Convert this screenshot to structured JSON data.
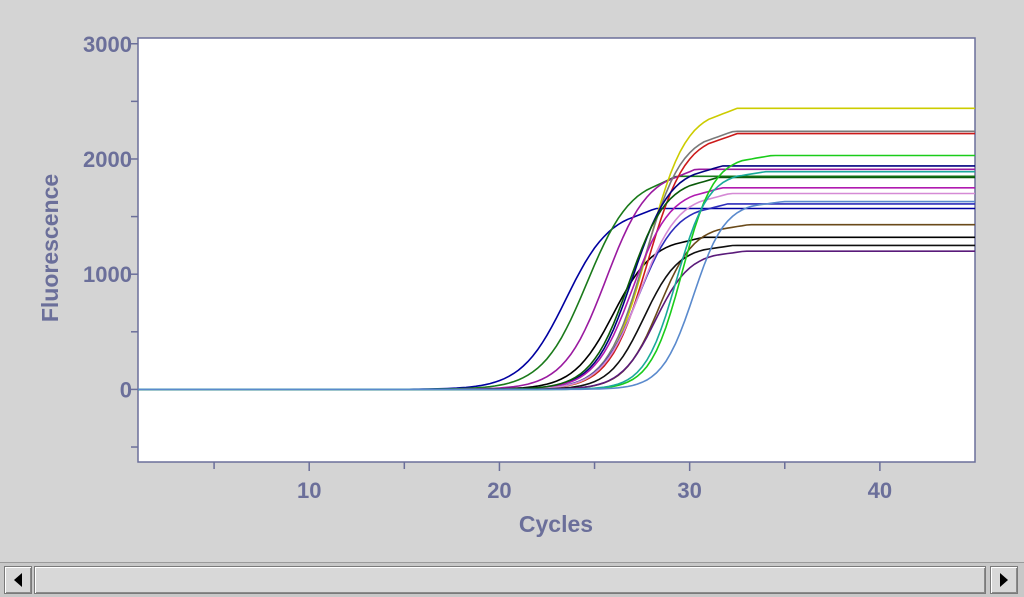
{
  "chart_data": {
    "type": "line",
    "title": "",
    "xlabel": "Cycles",
    "ylabel": "Fluorescence",
    "xlim": [
      1,
      45
    ],
    "ylim": [
      -630,
      3050
    ],
    "xticks": [
      10,
      20,
      30,
      40
    ],
    "yticks": [
      0,
      1000,
      2000,
      3000
    ],
    "grid": false,
    "legend": "none",
    "series": [
      {
        "color": "#0000a0",
        "ct": 23.5,
        "plateau": 1570,
        "k": 0.85
      },
      {
        "color": "#1a7a1a",
        "ct": 24.6,
        "plateau": 1850,
        "k": 0.85
      },
      {
        "color": "#9a1aa0",
        "ct": 25.6,
        "plateau": 1910,
        "k": 0.9
      },
      {
        "color": "#000000",
        "ct": 26.0,
        "plateau": 1320,
        "k": 0.95
      },
      {
        "color": "#cc1a1a",
        "ct": 27.8,
        "plateau": 2220,
        "k": 1.0
      },
      {
        "color": "#cccc00",
        "ct": 27.8,
        "plateau": 2440,
        "k": 1.0
      },
      {
        "color": "#7a7a7a",
        "ct": 27.6,
        "plateau": 2240,
        "k": 1.0
      },
      {
        "color": "#000080",
        "ct": 27.0,
        "plateau": 1940,
        "k": 1.0
      },
      {
        "color": "#2d2dbb",
        "ct": 27.3,
        "plateau": 1610,
        "k": 1.0
      },
      {
        "color": "#b01ab0",
        "ct": 27.0,
        "plateau": 1750,
        "k": 1.0
      },
      {
        "color": "#d58ad5",
        "ct": 27.4,
        "plateau": 1700,
        "k": 1.0
      },
      {
        "color": "#0a5a0a",
        "ct": 26.8,
        "plateau": 1840,
        "k": 1.0
      },
      {
        "color": "#6a4a1a",
        "ct": 28.4,
        "plateau": 1430,
        "k": 1.1
      },
      {
        "color": "#101010",
        "ct": 27.6,
        "plateau": 1250,
        "k": 1.1
      },
      {
        "color": "#5a1a7a",
        "ct": 28.2,
        "plateau": 1200,
        "k": 1.1
      },
      {
        "color": "#1acc1a",
        "ct": 29.6,
        "plateau": 2030,
        "k": 1.2
      },
      {
        "color": "#1aaa9a",
        "ct": 29.3,
        "plateau": 1890,
        "k": 1.2
      },
      {
        "color": "#5a8acd",
        "ct": 30.2,
        "plateau": 1630,
        "k": 1.2
      }
    ]
  },
  "scrollbar": {
    "left_arrow": "arrow-left-icon",
    "right_arrow": "arrow-right-icon"
  }
}
